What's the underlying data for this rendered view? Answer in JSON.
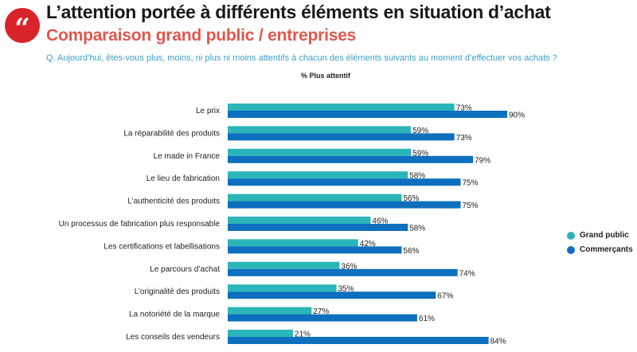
{
  "header": {
    "logo_icon": "quote-mark-icon",
    "logo_mark": "“",
    "title": "L’attention portée à différents éléments en situation d’achat",
    "subtitle": "Comparaison grand public / entreprises",
    "question": "Q. Aujourd’hui, êtes-vous plus, moins, ni plus ni moins attentifs à chacun des éléments suivants au moment d’effectuer vos achats ?",
    "measure": "% Plus attentif"
  },
  "colors": {
    "grand_public": "#2bb5b8",
    "commercants": "#0d6fbe",
    "logo": "#d8232a",
    "subtitle": "#e2574c",
    "question": "#3d9fc9"
  },
  "chart_data": {
    "type": "bar",
    "orientation": "horizontal",
    "categories": [
      "Le prix",
      "La réparabilité des produits",
      "Le made in France",
      "Le lieu de fabrication",
      "L’authenticité des produits",
      "Un processus de fabrication plus responsable",
      "Les certifications et labellisations",
      "Le parcours d’achat",
      "L’originalité des produits",
      "La notoriété de la marque",
      "Les conseils des vendeurs"
    ],
    "series": [
      {
        "name": "Grand public",
        "values": [
          73,
          59,
          59,
          58,
          56,
          46,
          42,
          36,
          35,
          27,
          21
        ]
      },
      {
        "name": "Commerçants",
        "values": [
          90,
          73,
          79,
          75,
          75,
          58,
          56,
          74,
          67,
          61,
          84
        ]
      }
    ],
    "value_suffix": "%",
    "xlim": [
      0,
      100
    ],
    "grid": false,
    "legend_position": "right"
  }
}
